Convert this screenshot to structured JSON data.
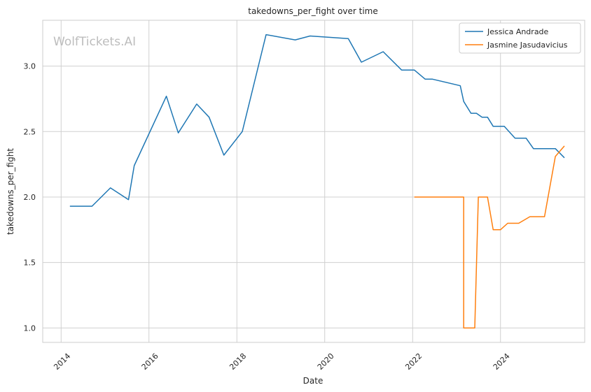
{
  "chart_data": {
    "type": "line",
    "title": "takedowns_per_fight over time",
    "xlabel": "Date",
    "ylabel": "takedowns_per_fight",
    "watermark": "WolfTickets.AI",
    "x_ticks": [
      "2014",
      "2016",
      "2018",
      "2020",
      "2022",
      "2024"
    ],
    "y_ticks": [
      "1.0",
      "1.5",
      "2.0",
      "2.5",
      "3.0"
    ],
    "xlim": [
      "2013-08-01",
      "2025-12-01"
    ],
    "ylim": [
      0.89,
      3.35
    ],
    "grid": true,
    "legend_position": "top-right",
    "series": [
      {
        "name": "Jessica Andrade",
        "color": "#1f77b4",
        "points": [
          [
            "2014-03-15",
            1.93
          ],
          [
            "2014-09-15",
            1.93
          ],
          [
            "2015-02-15",
            2.07
          ],
          [
            "2015-07-15",
            1.98
          ],
          [
            "2015-09-01",
            2.24
          ],
          [
            "2016-05-25",
            2.77
          ],
          [
            "2016-09-01",
            2.49
          ],
          [
            "2017-02-01",
            2.71
          ],
          [
            "2017-05-15",
            2.61
          ],
          [
            "2017-09-15",
            2.32
          ],
          [
            "2018-02-15",
            2.5
          ],
          [
            "2018-09-01",
            3.24
          ],
          [
            "2019-05-01",
            3.2
          ],
          [
            "2019-09-01",
            3.23
          ],
          [
            "2020-07-15",
            3.21
          ],
          [
            "2020-11-01",
            3.03
          ],
          [
            "2021-05-01",
            3.11
          ],
          [
            "2021-10-01",
            2.97
          ],
          [
            "2022-01-15",
            2.97
          ],
          [
            "2022-04-15",
            2.9
          ],
          [
            "2022-06-15",
            2.9
          ],
          [
            "2023-02-01",
            2.85
          ],
          [
            "2023-03-01",
            2.73
          ],
          [
            "2023-05-01",
            2.64
          ],
          [
            "2023-06-15",
            2.64
          ],
          [
            "2023-08-01",
            2.61
          ],
          [
            "2023-09-15",
            2.61
          ],
          [
            "2023-11-01",
            2.54
          ],
          [
            "2024-02-01",
            2.54
          ],
          [
            "2024-05-01",
            2.45
          ],
          [
            "2024-08-01",
            2.45
          ],
          [
            "2024-10-01",
            2.37
          ],
          [
            "2025-02-01",
            2.37
          ],
          [
            "2025-04-01",
            2.37
          ],
          [
            "2025-06-15",
            2.3
          ]
        ]
      },
      {
        "name": "Jasmine Jasudavicius",
        "color": "#ff7f0e",
        "points": [
          [
            "2022-01-15",
            2.0
          ],
          [
            "2023-03-01",
            2.0
          ],
          [
            "2023-03-01",
            1.0
          ],
          [
            "2023-06-01",
            1.0
          ],
          [
            "2023-07-01",
            2.0
          ],
          [
            "2023-09-15",
            2.0
          ],
          [
            "2023-11-01",
            1.75
          ],
          [
            "2024-01-01",
            1.75
          ],
          [
            "2024-03-01",
            1.8
          ],
          [
            "2024-06-01",
            1.8
          ],
          [
            "2024-09-01",
            1.85
          ],
          [
            "2025-01-01",
            1.85
          ],
          [
            "2025-04-01",
            2.31
          ],
          [
            "2025-06-15",
            2.39
          ]
        ]
      }
    ]
  }
}
